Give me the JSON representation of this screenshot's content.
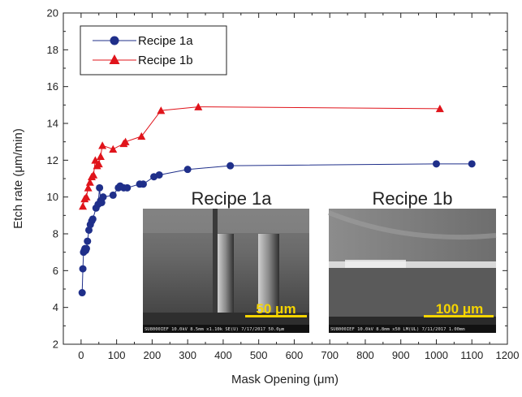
{
  "chart_data": {
    "type": "line",
    "title": "",
    "xlabel": "Mask Opening (μm)",
    "ylabel": "Etch rate (μm/min)",
    "xlim": [
      -50,
      1200
    ],
    "ylim": [
      2,
      20
    ],
    "xticks": [
      0,
      100,
      200,
      300,
      400,
      500,
      600,
      700,
      800,
      900,
      1000,
      1100,
      1200
    ],
    "yticks": [
      2,
      4,
      6,
      8,
      10,
      12,
      14,
      16,
      18,
      20
    ],
    "grid": false,
    "legend_position": "top-left",
    "series": [
      {
        "name": "Recipe 1a",
        "color": "#1f2f8a",
        "marker": "circle",
        "x": [
          3,
          5,
          7,
          9,
          11,
          13,
          15,
          18,
          22,
          26,
          30,
          33,
          42,
          48,
          52,
          55,
          58,
          62,
          90,
          105,
          110,
          120,
          130,
          165,
          175,
          205,
          220,
          300,
          420,
          1000,
          1100
        ],
        "y": [
          4.8,
          6.1,
          7.0,
          7.1,
          7.2,
          7.1,
          7.2,
          7.6,
          8.2,
          8.5,
          8.7,
          8.8,
          9.4,
          9.6,
          10.5,
          9.8,
          9.7,
          10.0,
          10.1,
          10.5,
          10.6,
          10.5,
          10.5,
          10.7,
          10.7,
          11.1,
          11.2,
          11.5,
          11.7,
          11.8,
          11.8
        ]
      },
      {
        "name": "Recipe 1b",
        "color": "#e0141b",
        "marker": "triangle",
        "x": [
          5,
          10,
          15,
          20,
          25,
          30,
          35,
          40,
          45,
          50,
          55,
          60,
          90,
          120,
          125,
          170,
          225,
          330,
          1010
        ],
        "y": [
          9.5,
          9.9,
          10.0,
          10.5,
          10.8,
          11.1,
          11.2,
          12.0,
          11.7,
          11.8,
          12.2,
          12.8,
          12.6,
          12.9,
          13.0,
          13.3,
          14.7,
          14.9,
          14.8
        ]
      }
    ]
  },
  "insets": [
    {
      "title": "Recipe 1a",
      "scale_bar": "50 μm",
      "sem_caption": "SU8000IEF 10.0kV 8.5mm x1.10k SE(U) 7/17/2017                    50.0μm"
    },
    {
      "title": "Recipe 1b",
      "scale_bar": "100 μm",
      "sem_caption": "SU8000IEF 10.0kV 8.8mm x50 LM(UL) 7/11/2017                     1.00mm"
    }
  ]
}
